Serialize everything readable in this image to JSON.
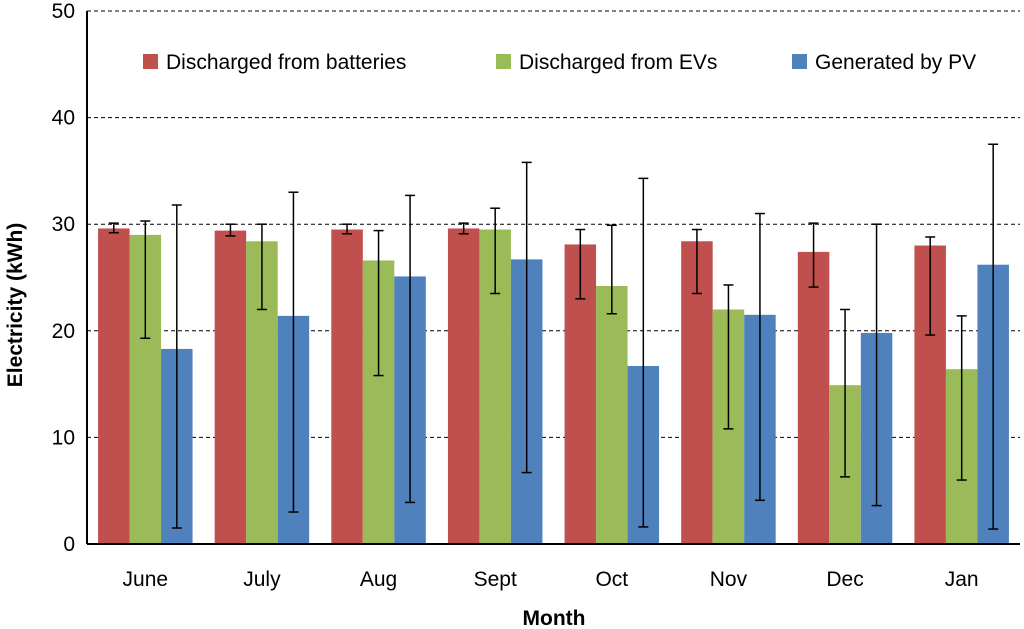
{
  "chart_data": {
    "type": "bar",
    "title": "",
    "xlabel": "Month",
    "ylabel": "Electricity  (kWh)",
    "ylim": [
      0,
      50
    ],
    "yticks": [
      0,
      10,
      20,
      30,
      40,
      50
    ],
    "grid": "horizontal dashed",
    "legend_position": "top",
    "categories": [
      "June",
      "July",
      "Aug",
      "Sept",
      "Oct",
      "Nov",
      "Dec",
      "Jan"
    ],
    "series": [
      {
        "name": "Discharged from batteries",
        "color": "#C0504D",
        "values": [
          29.6,
          29.4,
          29.5,
          29.6,
          28.1,
          28.4,
          27.4,
          28.0
        ],
        "error_low": [
          29.2,
          28.9,
          29.1,
          29.1,
          23.0,
          23.5,
          24.1,
          19.6
        ],
        "error_high": [
          30.1,
          30.0,
          30.0,
          30.1,
          29.5,
          29.5,
          30.1,
          28.8
        ]
      },
      {
        "name": "Discharged from EVs",
        "color": "#9BBB59",
        "values": [
          29.0,
          28.4,
          26.6,
          29.5,
          24.2,
          22.0,
          14.9,
          16.4
        ],
        "error_low": [
          19.3,
          22.0,
          15.8,
          23.5,
          21.6,
          10.8,
          6.3,
          6.0
        ],
        "error_high": [
          30.3,
          30.0,
          29.4,
          31.5,
          29.9,
          24.3,
          22.0,
          21.4
        ]
      },
      {
        "name": "Generated by PV",
        "color": "#4F81BD",
        "values": [
          18.3,
          21.4,
          25.1,
          26.7,
          16.7,
          21.5,
          19.8,
          26.2
        ],
        "error_low": [
          1.5,
          3.0,
          3.9,
          6.7,
          1.6,
          4.1,
          3.6,
          1.4
        ],
        "error_high": [
          31.8,
          33.0,
          32.7,
          35.8,
          34.3,
          31.0,
          30.0,
          37.5
        ]
      }
    ]
  }
}
